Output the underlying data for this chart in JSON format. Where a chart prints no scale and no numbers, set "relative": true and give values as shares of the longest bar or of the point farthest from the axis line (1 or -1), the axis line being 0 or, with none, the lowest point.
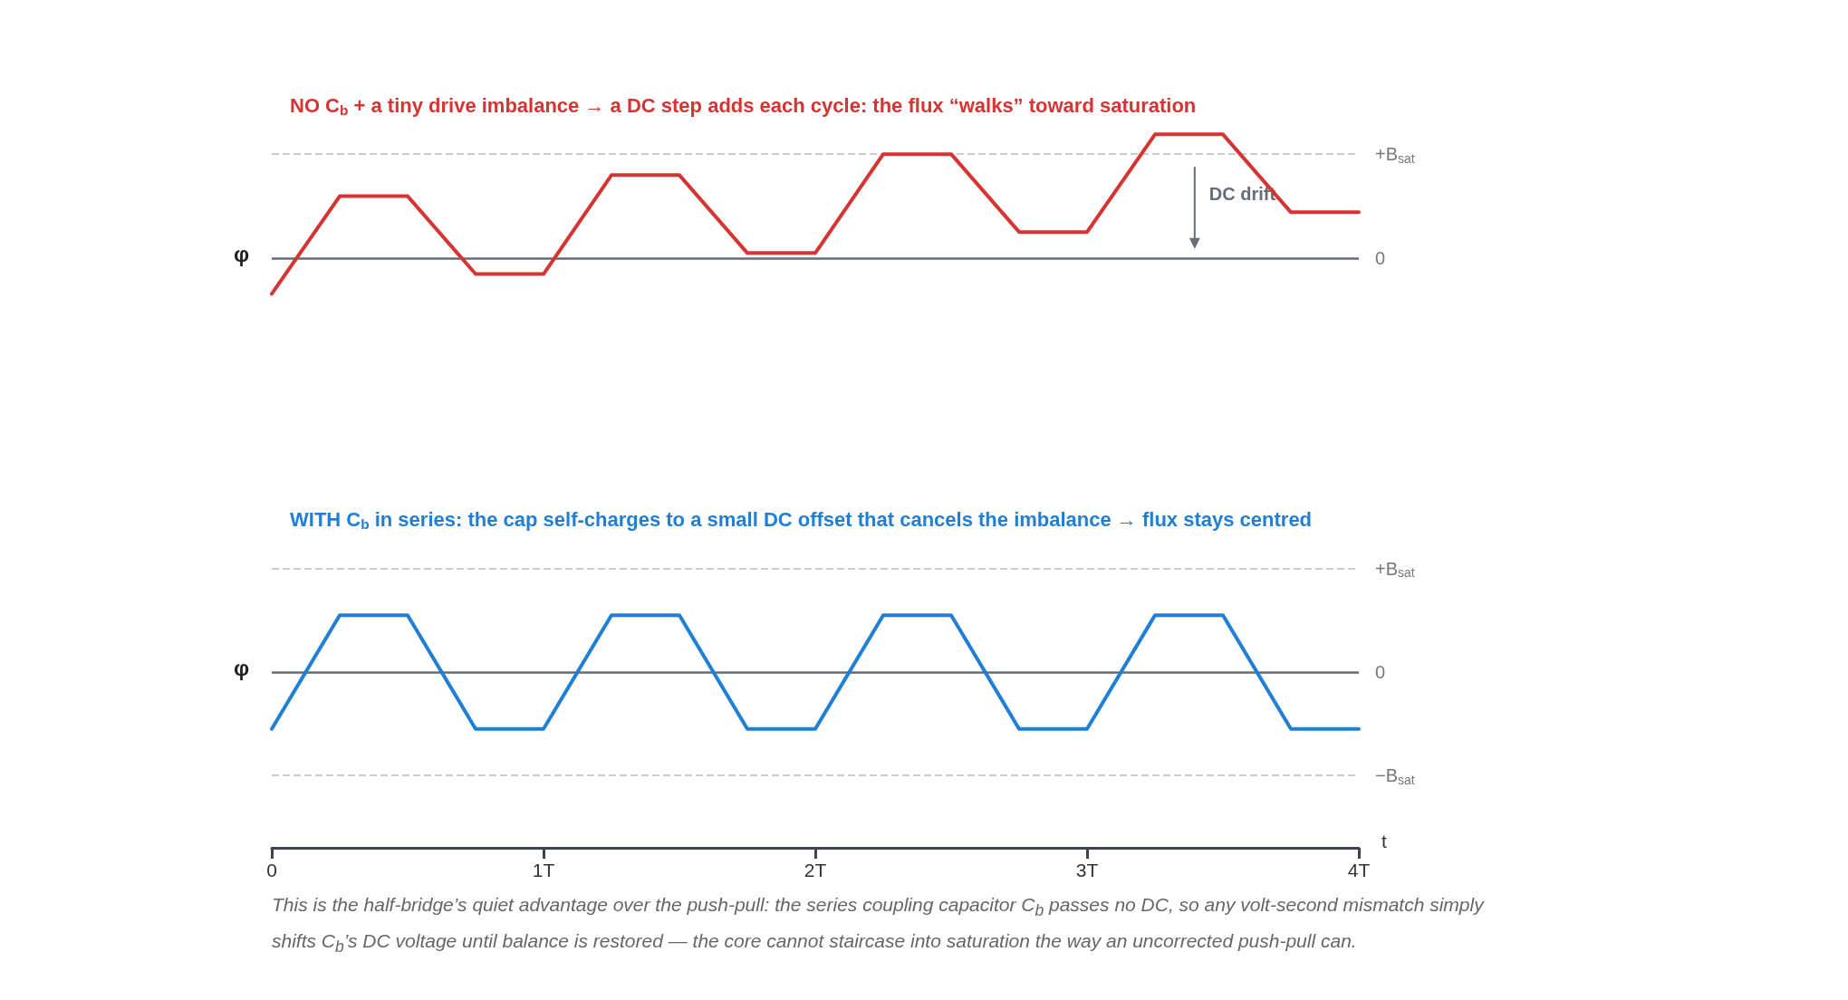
{
  "chart_data": [
    {
      "type": "line",
      "relative": true,
      "title": "NO C$_{b}$ + a tiny drive imbalance → a DC step adds each cycle: the flux “walks” toward saturation",
      "ylabel": "φ",
      "x": [
        0,
        0.25,
        0.5,
        0.75,
        1,
        1.25,
        1.5,
        1.75,
        2,
        2.25,
        2.5,
        2.75,
        3,
        3.25,
        3.5,
        3.75,
        4
      ],
      "series": [
        {
          "color": "#d63333",
          "values": [
            -0.29,
            0.5,
            0.5,
            -0.13,
            -0.13,
            0.67,
            0.67,
            0.04,
            0.04,
            0.84,
            0.84,
            0.21,
            0.21,
            1,
            1,
            0.37,
            0.37
          ]
        }
      ],
      "xlim": [
        0,
        4
      ],
      "tick_labels": false,
      "marker": "none",
      "line_style": "solid",
      "ref_lines": [
        {
          "axis": "y",
          "value": 0.84,
          "label": "+B$_{sat}$",
          "color": "#cccccc",
          "line_style": "dashed"
        },
        {
          "axis": "y",
          "value": 0,
          "label": "0",
          "color": "#666d77",
          "line_style": "solid"
        }
      ],
      "annotations": [
        "DC drift"
      ]
    },
    {
      "type": "line",
      "relative": true,
      "title": "WITH C$_{b}$ in series: the cap self-charges to a small DC offset that cancels the imbalance → flux stays centred",
      "ylabel": "φ",
      "xlabel": "t",
      "x": [
        0,
        0.25,
        0.5,
        0.75,
        1,
        1.25,
        1.5,
        1.75,
        2,
        2.25,
        2.5,
        2.75,
        3,
        3.25,
        3.5,
        3.75,
        4
      ],
      "series": [
        {
          "color": "#1f7fd4",
          "values": [
            -1,
            1,
            1,
            -1,
            -1,
            1,
            1,
            -1,
            -1,
            1,
            1,
            -1,
            -1,
            1,
            1,
            -1,
            -1
          ]
        }
      ],
      "xlim": [
        0,
        4
      ],
      "xticks": [
        0,
        {
          "value": 1,
          "label": "1T"
        },
        {
          "value": 2,
          "label": "2T"
        },
        {
          "value": 3,
          "label": "3T"
        },
        {
          "value": 4,
          "label": "4T"
        }
      ],
      "tick_labels": "x",
      "marker": "none",
      "line_style": "solid",
      "ref_lines": [
        {
          "axis": "y",
          "value": 1.82,
          "label": "+B$_{sat}$",
          "color": "#cccccc",
          "line_style": "dashed"
        },
        {
          "axis": "y",
          "value": -1.82,
          "label": "−B$_{sat}$",
          "color": "#cccccc",
          "line_style": "dashed"
        },
        {
          "axis": "y",
          "value": 0,
          "label": "0",
          "color": "#666d77",
          "line_style": "solid"
        }
      ],
      "annotations": [
        "This is the half-bridge’s quiet advantage over the push-pull: the series coupling capacitor C$_{b}$ passes no DC, so any volt-second mismatch simply shifts C$_{b}$’s DC voltage until balance is restored — the core cannot staircase into saturation the way an uncorrected push-pull can."
      ]
    }
  ]
}
